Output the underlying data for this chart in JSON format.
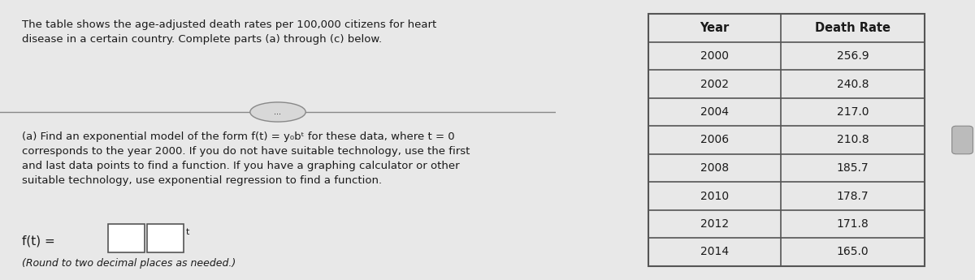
{
  "intro_text": "The table shows the age-adjusted death rates per 100,000 citizens for heart\ndisease in a certain country. Complete parts (a) through (c) below.",
  "part_a_text": "(a) Find an exponential model of the form f(t) = y₀bᵗ for these data, where t = 0\ncorresponds to the year 2000. If you do not have suitable technology, use the first\nand last data points to find a function. If you have a graphing calculator or other\nsuitable technology, use exponential regression to find a function.",
  "formula_text": "f(t) =",
  "round_text": "(Round to two decimal places as needed.)",
  "table_headers": [
    "Year",
    "Death Rate"
  ],
  "table_years": [
    "2000",
    "2002",
    "2004",
    "2006",
    "2008",
    "2010",
    "2012",
    "2014"
  ],
  "table_rates": [
    "256.9",
    "240.8",
    "217.0",
    "210.8",
    "185.7",
    "178.7",
    "171.8",
    "165.0"
  ],
  "bg_color": "#e8e8e8",
  "table_bg": "#f0f0f0",
  "left_panel_bg": "#d8d8d8",
  "right_panel_bg": "#e0e0e0",
  "text_color": "#1a1a1a",
  "divider_color": "#888888",
  "table_border_color": "#555555"
}
